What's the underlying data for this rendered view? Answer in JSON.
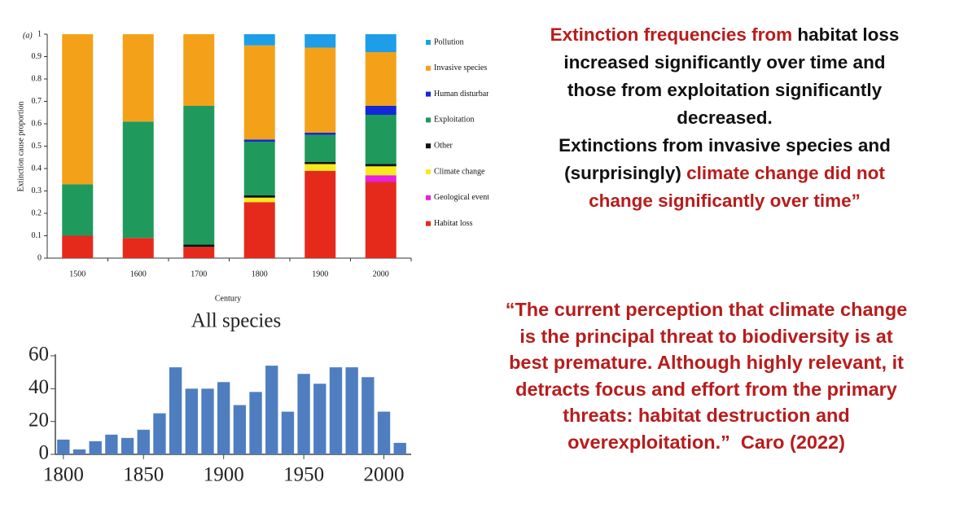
{
  "chart_data": [
    {
      "type": "bar",
      "stacked": true,
      "panel_label": "(a)",
      "y_label": "Extinction cause proportion",
      "x_label": "Century",
      "categories": [
        "1500",
        "1600",
        "1700",
        "1800",
        "1900",
        "2000"
      ],
      "ylim": [
        0,
        1
      ],
      "yticks": [
        0,
        0.1,
        0.2,
        0.3,
        0.4,
        0.5,
        0.6,
        0.7,
        0.8,
        0.9,
        1
      ],
      "series": [
        {
          "name": "Habitat loss",
          "color": "#e52a1c",
          "values": [
            0.1,
            0.09,
            0.05,
            0.25,
            0.39,
            0.34
          ]
        },
        {
          "name": "Geological events",
          "color": "#e81ee0",
          "values": [
            0,
            0,
            0,
            0,
            0,
            0.03
          ]
        },
        {
          "name": "Climate change",
          "color": "#f7ea1c",
          "values": [
            0,
            0,
            0,
            0.02,
            0.03,
            0.04
          ]
        },
        {
          "name": "Other",
          "color": "#111111",
          "values": [
            0,
            0,
            0.01,
            0.01,
            0.01,
            0.01
          ]
        },
        {
          "name": "Exploitation",
          "color": "#1f9a5c",
          "values": [
            0.23,
            0.52,
            0.62,
            0.24,
            0.12,
            0.22
          ]
        },
        {
          "name": "Human disturbance",
          "color": "#1428d8",
          "values": [
            0,
            0,
            0,
            0.01,
            0.01,
            0.04
          ]
        },
        {
          "name": "Invasive species",
          "color": "#f4a11a",
          "values": [
            0.67,
            0.39,
            0.32,
            0.42,
            0.38,
            0.24
          ]
        },
        {
          "name": "Pollution",
          "color": "#1e9ee8",
          "values": [
            0,
            0,
            0,
            0.05,
            0.06,
            0.08
          ]
        }
      ]
    },
    {
      "type": "bar",
      "title": "All species",
      "color": "#4f7ec0",
      "x": [
        1800,
        1810,
        1820,
        1830,
        1840,
        1850,
        1860,
        1870,
        1880,
        1890,
        1900,
        1910,
        1920,
        1930,
        1940,
        1950,
        1960,
        1970,
        1980,
        1990,
        2000,
        2010
      ],
      "values": [
        9,
        3,
        8,
        12,
        10,
        15,
        25,
        53,
        40,
        40,
        44,
        30,
        38,
        54,
        26,
        49,
        43,
        53,
        53,
        47,
        26,
        7
      ],
      "xlim": [
        1795,
        2017
      ],
      "xticks": [
        1800,
        1850,
        1900,
        1950,
        2000
      ],
      "ylim": [
        0,
        60
      ],
      "yticks": [
        0,
        20,
        40,
        60
      ]
    }
  ],
  "findings": [
    [
      {
        "text": "Extinction frequencies from ",
        "color": "#b81c1c"
      },
      {
        "text": "habitat loss",
        "color": "#111111"
      }
    ],
    [
      {
        "text": "increased significantly over time and",
        "color": "#111111"
      }
    ],
    [
      {
        "text": "those from exploitation significantly",
        "color": "#111111"
      }
    ],
    [
      {
        "text": "decreased.",
        "color": "#111111"
      }
    ],
    [
      {
        "text": "Extinctions from invasive species and",
        "color": "#111111"
      }
    ],
    [
      {
        "text": "(surprisingly) ",
        "color": "#111111"
      },
      {
        "text": "climate change did not",
        "color": "#b81c1c"
      }
    ],
    [
      {
        "text": "change significantly over time”",
        "color": "#b81c1c"
      }
    ]
  ],
  "quote": [
    "“The current perception that climate change",
    "is the principal threat to biodiversity is at",
    "best premature. Although highly relevant, it",
    "detracts focus and effort from the primary",
    "threats: habitat destruction and",
    "overexploitation.”  Caro (2022)"
  ]
}
